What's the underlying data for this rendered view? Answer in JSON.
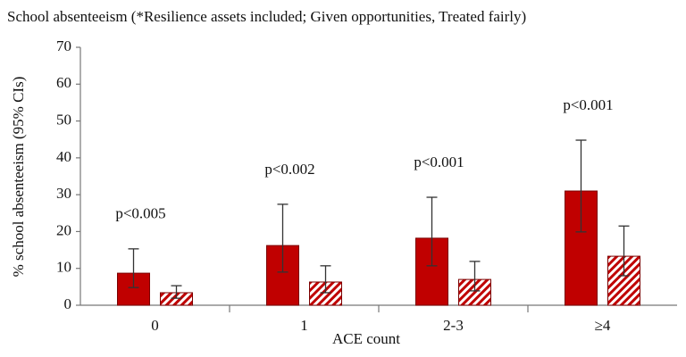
{
  "chart_data": {
    "type": "bar",
    "title": "School absenteeism (*Resilience assets included; Given opportunities, Treated fairly)",
    "x_label": "ACE count",
    "y_label": "% school absenteeism (95% CIs)",
    "categories": [
      "0",
      "1",
      "2-3",
      "≥4"
    ],
    "annotations": [
      "p<0.005",
      "p<0.002",
      "p<0.001",
      "p<0.001"
    ],
    "series": [
      {
        "color": "#c00000",
        "hatch": false,
        "values": [
          8.7,
          16.2,
          18.2,
          31.0
        ],
        "ci_low": [
          4.8,
          9.0,
          10.7,
          19.9
        ],
        "ci_high": [
          15.3,
          27.4,
          29.3,
          44.8
        ]
      },
      {
        "color": "#c00000",
        "hatch": true,
        "values": [
          3.4,
          6.3,
          7.0,
          13.3
        ],
        "ci_low": [
          1.9,
          3.4,
          3.9,
          8.0
        ],
        "ci_high": [
          5.3,
          10.7,
          11.9,
          21.5
        ]
      }
    ],
    "ylim": [
      0,
      70
    ],
    "yticks": [
      0,
      10,
      20,
      30,
      40,
      50,
      60,
      70
    ],
    "grid": false
  }
}
